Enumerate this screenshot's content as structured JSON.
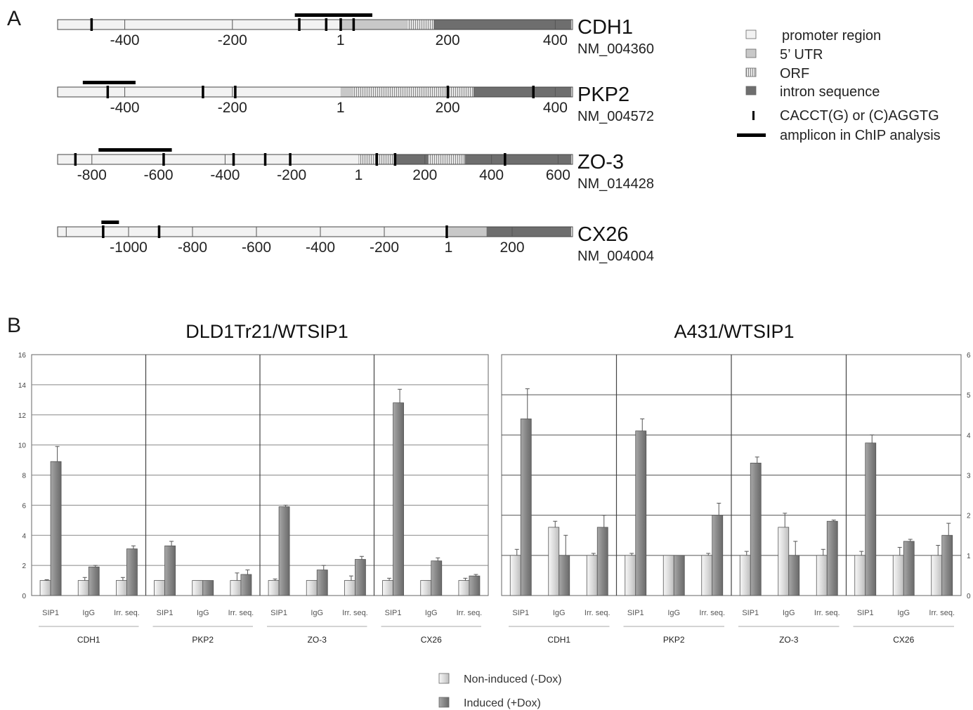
{
  "panel_a": {
    "label": "A",
    "genes": [
      {
        "name": "CDH1",
        "accession": "NM_004360",
        "ticks": [
          {
            "value": -400,
            "label": "-400"
          },
          {
            "value": -200,
            "label": "-200"
          },
          {
            "value": 1,
            "label": "1"
          },
          {
            "value": 200,
            "label": "200"
          },
          {
            "value": 400,
            "label": "400"
          }
        ],
        "segments": [
          {
            "type": "promoter",
            "start": -530,
            "end": 1
          },
          {
            "type": "utr",
            "start": 1,
            "end": 125
          },
          {
            "type": "orf",
            "start": 125,
            "end": 175
          },
          {
            "type": "intron",
            "start": 175,
            "end": 430
          }
        ],
        "motifs": [
          -462,
          -76,
          -26,
          1,
          25
        ],
        "amplicon": {
          "start": -84,
          "end": 60
        },
        "internal_ticks": [
          -400,
          -200,
          175,
          400
        ]
      },
      {
        "name": "PKP2",
        "accession": "NM_004572",
        "ticks": [
          {
            "value": -400,
            "label": "-400"
          },
          {
            "value": -200,
            "label": "-200"
          },
          {
            "value": 1,
            "label": "1"
          },
          {
            "value": 200,
            "label": "200"
          },
          {
            "value": 400,
            "label": "400"
          }
        ],
        "segments": [
          {
            "type": "promoter",
            "start": -530,
            "end": 1
          },
          {
            "type": "utr",
            "start": 1,
            "end": 25
          },
          {
            "type": "orf",
            "start": 25,
            "end": 248
          },
          {
            "type": "intron",
            "start": 248,
            "end": 430
          }
        ],
        "motifs": [
          -432,
          -255,
          -195,
          200,
          359
        ],
        "amplicon": {
          "start": -478,
          "end": -380
        },
        "internal_ticks": [
          -400,
          -200,
          200,
          400
        ]
      },
      {
        "name": "ZO-3",
        "accession": "NM_014428",
        "ticks": [
          {
            "value": -800,
            "label": "-800"
          },
          {
            "value": -600,
            "label": "-600"
          },
          {
            "value": -400,
            "label": "-400"
          },
          {
            "value": -200,
            "label": "-200"
          },
          {
            "value": 1,
            "label": "1"
          },
          {
            "value": 200,
            "label": "200"
          },
          {
            "value": 400,
            "label": "400"
          },
          {
            "value": 600,
            "label": "600"
          }
        ],
        "segments": [
          {
            "type": "promoter",
            "start": -920,
            "end": 1
          },
          {
            "type": "orf",
            "start": 1,
            "end": 110
          },
          {
            "type": "intron",
            "start": 110,
            "end": 210
          },
          {
            "type": "orf",
            "start": 210,
            "end": 320
          },
          {
            "type": "intron",
            "start": 320,
            "end": 640
          }
        ],
        "motifs": [
          -850,
          -585,
          -375,
          -280,
          -205,
          55,
          110,
          440
        ],
        "amplicon": {
          "start": -780,
          "end": -560
        },
        "internal_ticks": [
          -800,
          -400,
          200,
          400,
          600
        ]
      },
      {
        "name": "CX26",
        "accession": "NM_004004",
        "ticks": [
          {
            "value": -1000,
            "label": "-1000"
          },
          {
            "value": -800,
            "label": "-800"
          },
          {
            "value": -600,
            "label": "-600"
          },
          {
            "value": -400,
            "label": "-400"
          },
          {
            "value": -200,
            "label": "-200"
          },
          {
            "value": 1,
            "label": "1"
          },
          {
            "value": 200,
            "label": "200"
          }
        ],
        "segments": [
          {
            "type": "promoter",
            "start": -1225,
            "end": 1
          },
          {
            "type": "utr",
            "start": 1,
            "end": 120
          },
          {
            "type": "intron",
            "start": 120,
            "end": 385
          }
        ],
        "motifs": [
          -1080,
          -905,
          -5
        ],
        "amplicon": {
          "start": -1085,
          "end": -1030
        },
        "internal_ticks": [
          -1195,
          -1000,
          -800,
          -600,
          -400,
          -200,
          200
        ]
      }
    ],
    "legend": [
      {
        "key": "promoter",
        "label": "promoter region"
      },
      {
        "key": "utr",
        "label": "5’ UTR"
      },
      {
        "key": "orf",
        "label": "ORF"
      },
      {
        "key": "intron",
        "label": "intron sequence"
      },
      {
        "key": "motif",
        "label": "CACCT(G) or (C)AGGTG"
      },
      {
        "key": "amplicon",
        "label": "amplicon in ChIP analysis"
      }
    ],
    "colors": {
      "promoter": "#f2f2f2",
      "utr": "#c8c8c8",
      "orf_bg": "#e6e6e6",
      "orf_stripe": "#8a8a8a",
      "intron": "#6e6e6e",
      "motif": "#000000",
      "amplicon": "#000000"
    }
  },
  "panel_b": {
    "label": "B",
    "legend": [
      {
        "key": "noninduced",
        "label": "Non-induced (-Dox)"
      },
      {
        "key": "induced",
        "label": "Induced (+Dox)"
      }
    ],
    "colors": {
      "noninduced": "#e2e2e2",
      "induced": "#8c8c8c"
    }
  },
  "chart_data": [
    {
      "type": "bar",
      "title": "DLD1Tr21/WTSIP1",
      "ylim": [
        0,
        16
      ],
      "yticks": [
        "0",
        "2",
        "4",
        "6",
        "8",
        "10",
        "12",
        "14",
        "16"
      ],
      "groups": [
        "CDH1",
        "PKP2",
        "ZO-3",
        "CX26"
      ],
      "categories": [
        "SIP1",
        "IgG",
        "Irr. seq."
      ],
      "series": [
        {
          "name": "Non-induced (-Dox)",
          "values": [
            [
              1.0,
              1.0,
              1.0
            ],
            [
              1.0,
              1.0,
              1.0
            ],
            [
              1.0,
              1.0,
              1.0
            ],
            [
              1.0,
              1.0,
              1.0
            ]
          ],
          "errors": [
            [
              0.05,
              0.2,
              0.2
            ],
            [
              0,
              0,
              0.5
            ],
            [
              0.1,
              0,
              0.3
            ],
            [
              0.15,
              0,
              0.15
            ]
          ]
        },
        {
          "name": "Induced (+Dox)",
          "values": [
            [
              8.9,
              1.9,
              3.1
            ],
            [
              3.3,
              1.0,
              1.4
            ],
            [
              5.9,
              1.7,
              2.4
            ],
            [
              12.8,
              2.3,
              1.3
            ]
          ],
          "errors": [
            [
              1.0,
              0.1,
              0.2
            ],
            [
              0.3,
              0,
              0.3
            ],
            [
              0.1,
              0.3,
              0.2
            ],
            [
              0.9,
              0.2,
              0.1
            ]
          ]
        }
      ],
      "grid": true
    },
    {
      "type": "bar",
      "title": "A431/WTSIP1",
      "ylim": [
        0,
        6
      ],
      "yticks": [
        "0",
        "1",
        "2",
        "3",
        "4",
        "5",
        "6"
      ],
      "groups": [
        "CDH1",
        "PKP2",
        "ZO-3",
        "CX26"
      ],
      "categories": [
        "SIP1",
        "IgG",
        "Irr. seq."
      ],
      "series": [
        {
          "name": "Non-induced (-Dox)",
          "values": [
            [
              1.0,
              1.7,
              1.0
            ],
            [
              1.0,
              1.0,
              1.0
            ],
            [
              1.0,
              1.7,
              1.0
            ],
            [
              1.0,
              1.0,
              1.0
            ]
          ],
          "errors": [
            [
              0.15,
              0.15,
              0.05
            ],
            [
              0.05,
              0,
              0.05
            ],
            [
              0.1,
              0.35,
              0.15
            ],
            [
              0.1,
              0.2,
              0.25
            ]
          ]
        },
        {
          "name": "Induced (+Dox)",
          "values": [
            [
              4.4,
              1.0,
              1.7
            ],
            [
              4.1,
              1.0,
              2.0
            ],
            [
              3.3,
              1.0,
              1.85
            ],
            [
              3.8,
              1.35,
              1.5
            ]
          ],
          "errors": [
            [
              0.75,
              0.5,
              0.3
            ],
            [
              0.3,
              0,
              0.3
            ],
            [
              0.15,
              0.35,
              0.03
            ],
            [
              0.2,
              0.05,
              0.3
            ]
          ]
        }
      ],
      "grid": true
    }
  ]
}
